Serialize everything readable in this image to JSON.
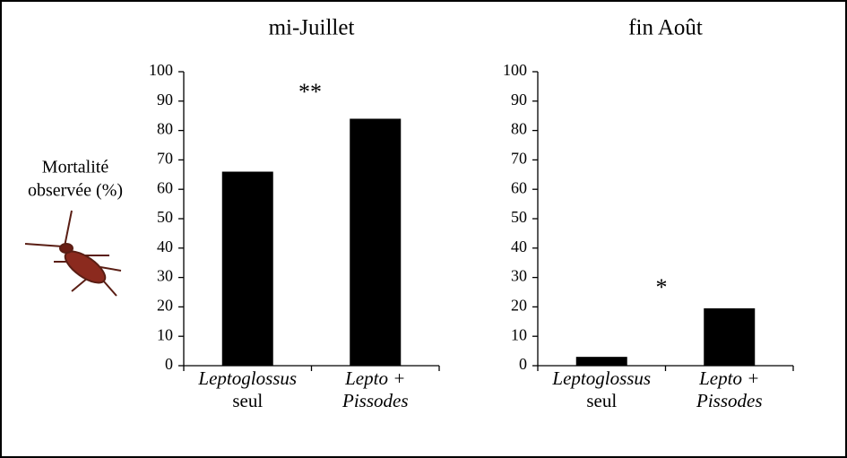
{
  "chart_data": [
    {
      "type": "bar",
      "title": "mi-Juillet",
      "y_label": [
        "Mortalité",
        "observée (%)"
      ],
      "categories": [
        [
          "Leptoglossus",
          "seul"
        ],
        [
          "Lepto +",
          "Pissodes"
        ]
      ],
      "values": [
        66,
        84
      ],
      "color": "#000000",
      "ylim": [
        0,
        100
      ],
      "yticks": [
        0,
        10,
        20,
        30,
        40,
        50,
        60,
        70,
        80,
        90,
        100
      ],
      "annotation": "**"
    },
    {
      "type": "bar",
      "title": "fin Août",
      "categories": [
        [
          "Leptoglossus",
          "seul"
        ],
        [
          "Lepto +",
          "Pissodes"
        ]
      ],
      "values": [
        3,
        19.5
      ],
      "color": "#000000",
      "ylim": [
        0,
        100
      ],
      "yticks": [
        0,
        10,
        20,
        30,
        40,
        50,
        60,
        70,
        80,
        90,
        100
      ],
      "annotation": "*"
    }
  ]
}
